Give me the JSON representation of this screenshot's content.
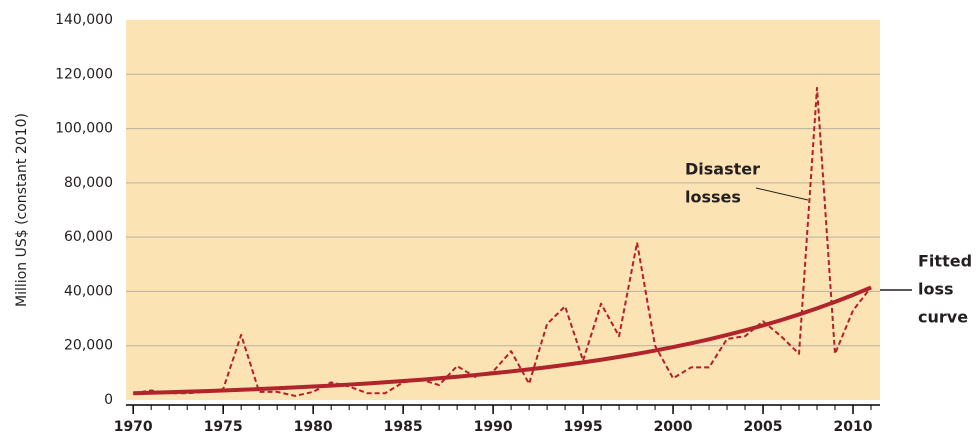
{
  "chart_data": {
    "type": "line",
    "y_axis_label": "Million US$ (constant 2010)",
    "x": [
      1970,
      1971,
      1972,
      1973,
      1974,
      1975,
      1976,
      1977,
      1978,
      1979,
      1980,
      1981,
      1982,
      1983,
      1984,
      1985,
      1986,
      1987,
      1988,
      1989,
      1990,
      1991,
      1992,
      1993,
      1994,
      1995,
      1996,
      1997,
      1998,
      1999,
      2000,
      2001,
      2002,
      2003,
      2004,
      2005,
      2006,
      2007,
      2008,
      2009,
      2010,
      2011
    ],
    "series": [
      {
        "name": "Disaster losses",
        "color": "#b3202a",
        "dash": true,
        "values": [
          2500,
          3500,
          2500,
          2500,
          3000,
          4000,
          24000,
          3000,
          3000,
          1500,
          3000,
          6500,
          5000,
          2500,
          2500,
          6500,
          7500,
          5500,
          12500,
          8500,
          10500,
          18000,
          6000,
          28000,
          34500,
          14500,
          35500,
          23500,
          58000,
          20000,
          8000,
          12000,
          12000,
          22500,
          23500,
          29000,
          23500,
          17000,
          115000,
          17000,
          33000,
          41500
        ]
      },
      {
        "name": "Fitted loss curve",
        "color": "#b0242b",
        "dash": false,
        "values": [
          2500,
          2677,
          2867,
          3070,
          3288,
          3521,
          3771,
          4038,
          4324,
          4631,
          4959,
          5311,
          5687,
          6091,
          6522,
          6985,
          7480,
          8010,
          8578,
          9186,
          9837,
          10535,
          11281,
          12081,
          12937,
          13854,
          14836,
          15888,
          17014,
          18220,
          19511,
          20894,
          22375,
          23961,
          25660,
          27479,
          29427,
          31513,
          33747,
          36139,
          38701,
          41444
        ]
      }
    ],
    "annotations": [
      {
        "lines": [
          "Disaster",
          "losses"
        ]
      },
      {
        "lines": [
          "Fitted",
          "loss",
          "curve"
        ]
      }
    ],
    "xlim": [
      1969.6,
      2011.5
    ],
    "xticks": [
      1970,
      1975,
      1980,
      1985,
      1990,
      1995,
      2000,
      2005,
      2010
    ],
    "ylim": [
      0,
      140000
    ],
    "yticks": [
      0,
      {
        "value": 20000,
        "label": "20,000"
      },
      {
        "value": 40000,
        "label": "40,000"
      },
      {
        "value": 60000,
        "label": "60,000"
      },
      {
        "value": 80000,
        "label": "80,000"
      },
      {
        "value": 100000,
        "label": "100,000"
      },
      {
        "value": 120000,
        "label": "120,000"
      },
      {
        "value": 140000,
        "label": "140,000"
      }
    ],
    "grid": true,
    "background": "#fce3b3"
  }
}
